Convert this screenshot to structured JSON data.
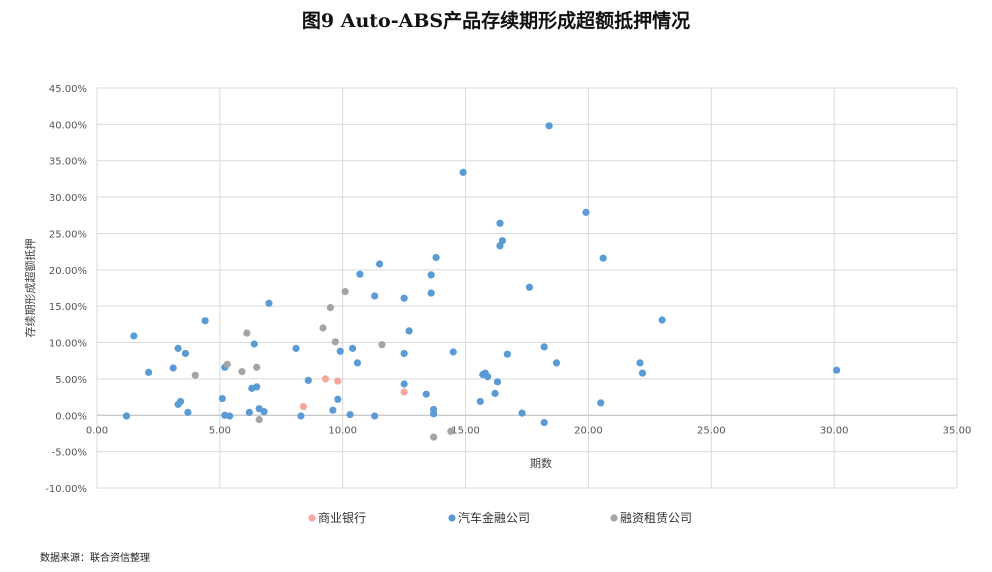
{
  "title": "图9 Auto-ABS产品存续期形成超额抵押情况",
  "source": "数据来源：联合资信整理",
  "chart_data": {
    "type": "scatter",
    "title": "图9 Auto-ABS产品存续期形成超额抵押情况",
    "xlabel": "期数",
    "ylabel": "存续期形成超额抵押",
    "xlim": [
      0,
      35
    ],
    "ylim": [
      -0.1,
      0.45
    ],
    "x_ticks": [
      0,
      5,
      10,
      15,
      20,
      25,
      30,
      35
    ],
    "x_tick_labels": [
      "0.00",
      "5.00",
      "10.00",
      "15.00",
      "20.00",
      "25.00",
      "30.00",
      "35.00"
    ],
    "y_ticks": [
      -0.1,
      -0.05,
      0,
      0.05,
      0.1,
      0.15,
      0.2,
      0.25,
      0.3,
      0.35,
      0.4,
      0.45
    ],
    "y_tick_labels": [
      "-10.00%",
      "-5.00%",
      "0.00%",
      "5.00%",
      "10.00%",
      "15.00%",
      "20.00%",
      "25.00%",
      "30.00%",
      "35.00%",
      "40.00%",
      "45.00%"
    ],
    "grid": true,
    "legend_position": "bottom",
    "series": [
      {
        "name": "商业银行",
        "color": "#f4a7a0",
        "points": [
          [
            8.4,
            0.012
          ],
          [
            9.3,
            0.05
          ],
          [
            9.8,
            0.047
          ],
          [
            12.5,
            0.032
          ]
        ]
      },
      {
        "name": "汽车金融公司",
        "color": "#5b9bd5",
        "points": [
          [
            1.2,
            -0.001
          ],
          [
            1.5,
            0.109
          ],
          [
            2.1,
            0.059
          ],
          [
            3.1,
            0.065
          ],
          [
            3.3,
            0.092
          ],
          [
            3.3,
            0.015
          ],
          [
            3.4,
            0.019
          ],
          [
            3.6,
            0.085
          ],
          [
            3.7,
            0.004
          ],
          [
            4.4,
            0.13
          ],
          [
            5.1,
            0.023
          ],
          [
            5.2,
            0.066
          ],
          [
            5.2,
            0.0
          ],
          [
            5.4,
            -0.001
          ],
          [
            6.2,
            0.004
          ],
          [
            6.3,
            0.037
          ],
          [
            6.4,
            0.098
          ],
          [
            6.5,
            0.039
          ],
          [
            6.6,
            0.009
          ],
          [
            6.8,
            0.005
          ],
          [
            7.0,
            0.154
          ],
          [
            8.1,
            0.092
          ],
          [
            8.3,
            -0.001
          ],
          [
            8.6,
            0.048
          ],
          [
            9.6,
            0.007
          ],
          [
            9.8,
            0.022
          ],
          [
            9.9,
            0.088
          ],
          [
            10.3,
            0.001
          ],
          [
            10.4,
            0.092
          ],
          [
            10.6,
            0.072
          ],
          [
            10.7,
            0.194
          ],
          [
            11.3,
            0.164
          ],
          [
            11.3,
            -0.001
          ],
          [
            11.5,
            0.208
          ],
          [
            12.5,
            0.161
          ],
          [
            12.5,
            0.085
          ],
          [
            12.5,
            0.043
          ],
          [
            12.7,
            0.116
          ],
          [
            13.4,
            0.029
          ],
          [
            13.6,
            0.193
          ],
          [
            13.6,
            0.168
          ],
          [
            13.7,
            0.008
          ],
          [
            13.7,
            0.002
          ],
          [
            13.8,
            0.217
          ],
          [
            14.5,
            0.087
          ],
          [
            14.9,
            0.334
          ],
          [
            15.6,
            0.019
          ],
          [
            15.7,
            0.056
          ],
          [
            15.8,
            0.058
          ],
          [
            15.9,
            0.053
          ],
          [
            16.2,
            0.03
          ],
          [
            16.3,
            0.046
          ],
          [
            16.4,
            0.264
          ],
          [
            16.4,
            0.233
          ],
          [
            16.5,
            0.24
          ],
          [
            16.7,
            0.084
          ],
          [
            17.3,
            0.003
          ],
          [
            17.6,
            0.176
          ],
          [
            18.2,
            0.094
          ],
          [
            18.2,
            -0.01
          ],
          [
            18.4,
            0.398
          ],
          [
            18.7,
            0.072
          ],
          [
            19.9,
            0.279
          ],
          [
            20.5,
            0.017
          ],
          [
            20.6,
            0.216
          ],
          [
            22.1,
            0.072
          ],
          [
            22.2,
            0.058
          ],
          [
            23.0,
            0.131
          ],
          [
            30.1,
            0.062
          ]
        ]
      },
      {
        "name": "融资租赁公司",
        "color": "#a5a5a5",
        "points": [
          [
            4.0,
            0.055
          ],
          [
            5.3,
            0.07
          ],
          [
            5.9,
            0.06
          ],
          [
            6.1,
            0.113
          ],
          [
            6.5,
            0.066
          ],
          [
            6.6,
            -0.006
          ],
          [
            9.2,
            0.12
          ],
          [
            9.5,
            0.148
          ],
          [
            9.7,
            0.101
          ],
          [
            10.1,
            0.17
          ],
          [
            11.6,
            0.097
          ],
          [
            13.7,
            -0.03
          ],
          [
            14.4,
            -0.022
          ]
        ]
      }
    ]
  }
}
